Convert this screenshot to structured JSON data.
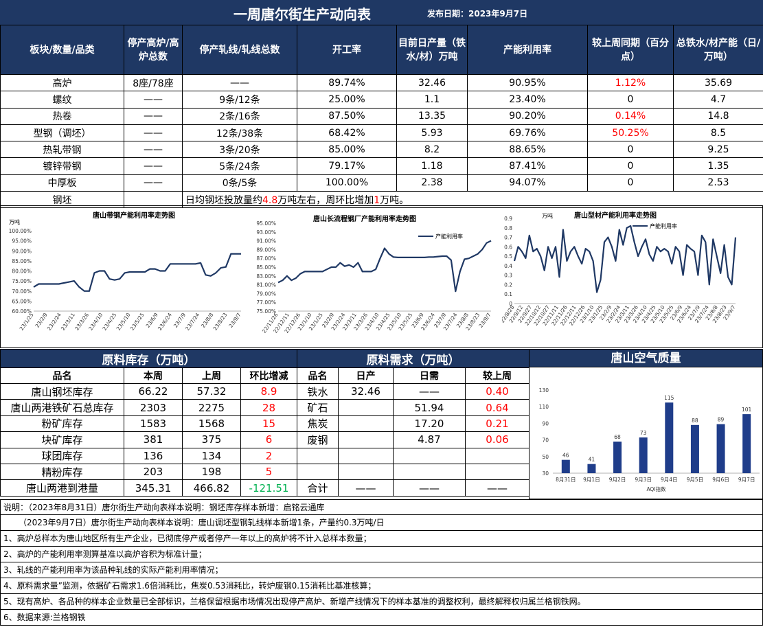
{
  "header": {
    "title": "一周唐尔街生产动向表",
    "publish_date": "发布日期：2023年9月7日"
  },
  "production_table": {
    "columns": [
      "板块/数量/品类",
      "停产高炉/高炉总数",
      "停产轧线/轧线总数",
      "开工率",
      "目前日产量（铁水/材）万吨",
      "产能利用率",
      "较上周同期（百分点）",
      "总铁水/材产能（日/万吨）"
    ],
    "rows": [
      {
        "name": "高炉",
        "furnace": "8座/78座",
        "lines": "——",
        "rate": "89.74%",
        "output": "32.46",
        "util": "90.95%",
        "change": "1.12%",
        "change_red": true,
        "capacity": "35.69"
      },
      {
        "name": "螺纹",
        "furnace": "——",
        "lines": "9条/12条",
        "rate": "25.00%",
        "output": "1.1",
        "util": "23.40%",
        "change": "0",
        "change_red": false,
        "capacity": "4.7"
      },
      {
        "name": "热卷",
        "furnace": "——",
        "lines": "2条/16条",
        "rate": "87.50%",
        "output": "13.35",
        "util": "90.20%",
        "change": "0.14%",
        "change_red": true,
        "capacity": "14.8"
      },
      {
        "name": "型钢（调坯）",
        "furnace": "——",
        "lines": "12条/38条",
        "rate": "68.42%",
        "output": "5.93",
        "util": "69.76%",
        "change": "50.25%",
        "change_red": true,
        "capacity": "8.5"
      },
      {
        "name": "热轧带钢",
        "furnace": "——",
        "lines": "3条/20条",
        "rate": "85.00%",
        "output": "8.2",
        "util": "88.65%",
        "change": "0",
        "change_red": false,
        "capacity": "9.25"
      },
      {
        "name": "镀锌带钢",
        "furnace": "——",
        "lines": "5条/24条",
        "rate": "79.17%",
        "output": "1.18",
        "util": "87.41%",
        "change": "0",
        "change_red": false,
        "capacity": "1.35"
      },
      {
        "name": "中厚板",
        "furnace": "——",
        "lines": "0条/5条",
        "rate": "100.00%",
        "output": "2.38",
        "util": "94.07%",
        "change": "0",
        "change_red": false,
        "capacity": "2.53"
      }
    ],
    "billet_row": {
      "name": "钢坯",
      "note_prefix": "日均钢坯投放量约",
      "note_value1": "4.8",
      "note_mid": "万吨左右，周环比增加",
      "note_value2": "1",
      "note_suffix": "万吨。"
    }
  },
  "chart_data": [
    {
      "type": "line",
      "title": "唐山带钢产能利用率走势图",
      "unit_label": "万吨",
      "ylim": [
        0.6,
        1.0
      ],
      "y_ticks": [
        "60.00%",
        "65.00%",
        "70.00%",
        "75.00%",
        "80.00%",
        "85.00%",
        "90.00%",
        "95.00%",
        "100.00%"
      ],
      "x_tick_labels": [
        "23/1/25",
        "23/2/9",
        "23/2/24",
        "23/3/11",
        "23/3/26",
        "23/4/10",
        "23/4/25",
        "23/5/10",
        "23/5/25",
        "23/6/9",
        "23/6/24",
        "23/7/9",
        "23/7/24",
        "23/8/8",
        "23/8/23",
        "23/9/7"
      ],
      "color": "#1f3864",
      "values": [
        0.72,
        0.735,
        0.735,
        0.735,
        0.735,
        0.735,
        0.74,
        0.745,
        0.75,
        0.72,
        0.7,
        0.7,
        0.79,
        0.8,
        0.8,
        0.76,
        0.755,
        0.76,
        0.79,
        0.795,
        0.795,
        0.795,
        0.795,
        0.81,
        0.81,
        0.8,
        0.8,
        0.835,
        0.835,
        0.835,
        0.835,
        0.835,
        0.835,
        0.84,
        0.78,
        0.775,
        0.79,
        0.815,
        0.82,
        0.885,
        0.885,
        0.885
      ]
    },
    {
      "type": "line",
      "title": "唐山长流程钢厂产能利用率走势图",
      "ylim": [
        0.75,
        0.95
      ],
      "y_ticks": [
        "75.00%",
        "77.00%",
        "79.00%",
        "81.00%",
        "83.00%",
        "85.00%",
        "87.00%",
        "89.00%",
        "91.00%",
        "93.00%",
        "95.00%"
      ],
      "x_tick_labels": [
        "22/11/26",
        "22/12/11",
        "22/12/26",
        "23/1/10",
        "23/1/25",
        "23/2/9",
        "23/2/24",
        "23/3/11",
        "23/3/26",
        "23/4/10",
        "23/4/25",
        "23/5/10",
        "23/5/25",
        "23/6/9",
        "23/6/24",
        "23/7/9",
        "23/7/24",
        "23/8/8",
        "23/8/23",
        "23/9/7"
      ],
      "series": [
        {
          "name": "产能利用率"
        }
      ],
      "color": "#1f3864",
      "values": [
        0.815,
        0.82,
        0.83,
        0.82,
        0.825,
        0.835,
        0.84,
        0.84,
        0.84,
        0.84,
        0.84,
        0.845,
        0.85,
        0.85,
        0.86,
        0.852,
        0.855,
        0.85,
        0.86,
        0.84,
        0.84,
        0.84,
        0.845,
        0.87,
        0.893,
        0.88,
        0.873,
        0.872,
        0.872,
        0.872,
        0.872,
        0.872,
        0.872,
        0.872,
        0.873,
        0.873,
        0.874,
        0.875,
        0.875,
        0.866,
        0.795,
        0.84,
        0.868,
        0.87,
        0.875,
        0.88,
        0.89,
        0.905,
        0.91
      ]
    },
    {
      "type": "line",
      "title": "唐山型材产能利用率走势图",
      "unit_label": "万吨",
      "ylim": [
        0,
        0.9
      ],
      "y_ticks": [
        "0",
        "0.1",
        "0.2",
        "0.3",
        "0.4",
        "0.5",
        "0.6",
        "0.7",
        "0.8",
        "0.9"
      ],
      "x_tick_labels": [
        "22/8/28",
        "22/9/12",
        "22/9/27",
        "22/10/12",
        "22/10/27",
        "22/11/11",
        "22/11/26",
        "22/12/11",
        "22/12/26",
        "23/1/10",
        "23/1/25",
        "23/2/9",
        "23/2/24",
        "23/3/11",
        "23/3/26",
        "23/4/10",
        "23/4/25",
        "23/5/10",
        "23/5/25",
        "23/6/9",
        "23/6/24",
        "23/7/9",
        "23/7/24",
        "23/8/8",
        "23/8/23",
        "23/9/7"
      ],
      "series": [
        {
          "name": "产能利用率"
        }
      ],
      "color": "#1f3864",
      "values": [
        0.45,
        0.6,
        0.55,
        0.48,
        0.72,
        0.55,
        0.58,
        0.5,
        0.35,
        0.6,
        0.48,
        0.6,
        0.28,
        0.78,
        0.45,
        0.55,
        0.6,
        0.5,
        0.42,
        0.58,
        0.55,
        0.45,
        0.12,
        0.25,
        0.65,
        0.7,
        0.6,
        0.45,
        0.78,
        0.62,
        0.8,
        0.82,
        0.65,
        0.5,
        0.6,
        0.68,
        0.52,
        0.45,
        0.6,
        0.55,
        0.58,
        0.55,
        0.42,
        0.6,
        0.55,
        0.3,
        0.62,
        0.58,
        0.55,
        0.3,
        0.72,
        0.65,
        0.2,
        0.68,
        0.5,
        0.32,
        0.62,
        0.28,
        0.2,
        0.7
      ]
    },
    {
      "type": "bar",
      "title": "",
      "xlabel": "AQI指数",
      "categories": [
        "8月31日",
        "9月1日",
        "9月2日",
        "9月3日",
        "9月4日",
        "9月5日",
        "9月6日",
        "9月7日"
      ],
      "values": [
        46,
        41,
        68,
        73,
        115,
        88,
        89,
        101
      ],
      "ylim": [
        30,
        130
      ],
      "y_ticks": [
        "30",
        "50",
        "70",
        "90",
        "110",
        "130"
      ],
      "color": "#1f3d8a"
    }
  ],
  "inventory": {
    "section_title": "原料库存（万吨）",
    "columns": [
      "品名",
      "本周",
      "上周",
      "环比增减"
    ],
    "rows": [
      {
        "name": "唐山钢坯库存",
        "this_week": "66.22",
        "last_week": "57.32",
        "change": "8.9",
        "color": "red"
      },
      {
        "name": "唐山两港铁矿石总库存",
        "this_week": "2303",
        "last_week": "2275",
        "change": "28",
        "color": "red"
      },
      {
        "name": "粉矿库存",
        "this_week": "1583",
        "last_week": "1568",
        "change": "15",
        "color": "red"
      },
      {
        "name": "块矿库存",
        "this_week": "381",
        "last_week": "375",
        "change": "6",
        "color": "red"
      },
      {
        "name": "球团库存",
        "this_week": "136",
        "last_week": "134",
        "change": "2",
        "color": "red"
      },
      {
        "name": "精粉库存",
        "this_week": "203",
        "last_week": "198",
        "change": "5",
        "color": "red"
      },
      {
        "name": "唐山两港到港量",
        "this_week": "345.31",
        "last_week": "466.82",
        "change": "-121.51",
        "color": "green"
      }
    ]
  },
  "demand": {
    "section_title": "原料需求（万吨）",
    "columns": [
      "品名",
      "日产",
      "日需",
      "较上周"
    ],
    "rows": [
      {
        "name": "铁水",
        "daily_output": "32.46",
        "daily_need": "——",
        "change": "0.40"
      },
      {
        "name": "矿石",
        "daily_output": "",
        "daily_need": "51.94",
        "change": "0.64"
      },
      {
        "name": "焦炭",
        "daily_output": "",
        "daily_need": "17.20",
        "change": "0.21"
      },
      {
        "name": "废钢",
        "daily_output": "",
        "daily_need": "4.87",
        "change": "0.06"
      },
      {
        "name": "",
        "daily_output": "",
        "daily_need": "",
        "change": ""
      },
      {
        "name": "",
        "daily_output": "",
        "daily_need": "",
        "change": ""
      },
      {
        "name": "合计",
        "daily_output": "——",
        "daily_need": "——",
        "change": "——"
      }
    ]
  },
  "air_quality": {
    "section_title": "唐山空气质量"
  },
  "notes": [
    "说明：（2023年8月31日）唐尔街生产动向表样本说明：钢坯库存样本新增：启铭云通库",
    "（2023年9月7日）唐尔街生产动向表样本说明：唐山调坯型钢轧线样本新增1条，产量约0.3万吨/日",
    "1、高炉总样本为唐山地区所有生产企业，已彻底停产或者停产一年以上的高炉将不计入总样本数量；",
    "2、高炉的产能利用率测算基准以高炉容积为标准计量；",
    "3、轧线的产能利用率为该品种轧线的实际产能利用率情况；",
    "4、原料需求量”监测，依据矿石需求1.6倍消耗比，焦炭0.53消耗比，转炉废钢0.15消耗比基准核算；",
    "5、现有高炉、各品种的样本企业数量已全部标识，兰格保留根据市场情况出现停产高炉、新增产线情况下的样本基准的调整权利，最终解释权归属兰格钢铁网。",
    "6、数据来源:兰格钢铁"
  ]
}
